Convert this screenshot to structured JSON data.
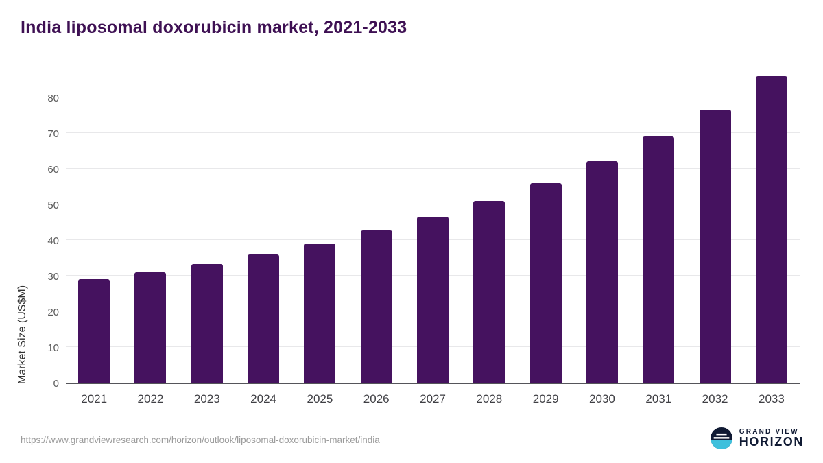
{
  "title": "India liposomal doxorubicin market, 2021-2033",
  "chart_data": {
    "type": "bar",
    "title": "India liposomal doxorubicin market, 2021-2033",
    "categories": [
      "2021",
      "2022",
      "2023",
      "2024",
      "2025",
      "2026",
      "2027",
      "2028",
      "2029",
      "2030",
      "2031",
      "2032",
      "2033"
    ],
    "values": [
      29,
      31,
      33.3,
      36,
      39,
      42.7,
      46.5,
      51,
      56,
      62,
      69,
      76.5,
      85.8
    ],
    "xlabel": "",
    "ylabel": "Market Size (US$M)",
    "yticks": [
      0,
      10,
      20,
      30,
      40,
      50,
      60,
      70,
      80
    ],
    "ylim": [
      0,
      88
    ],
    "grid": true,
    "legend": "none",
    "bar_color": "#45125F",
    "title_color": "#3E1053"
  },
  "footer": {
    "source_url": "https://www.grandviewresearch.com/horizon/outlook/liposomal-doxorubicin-market/india",
    "logo": {
      "line1": "GRAND VIEW",
      "line2": "HORIZON",
      "navy": "#101a33",
      "cyan": "#3FC0DC"
    }
  }
}
